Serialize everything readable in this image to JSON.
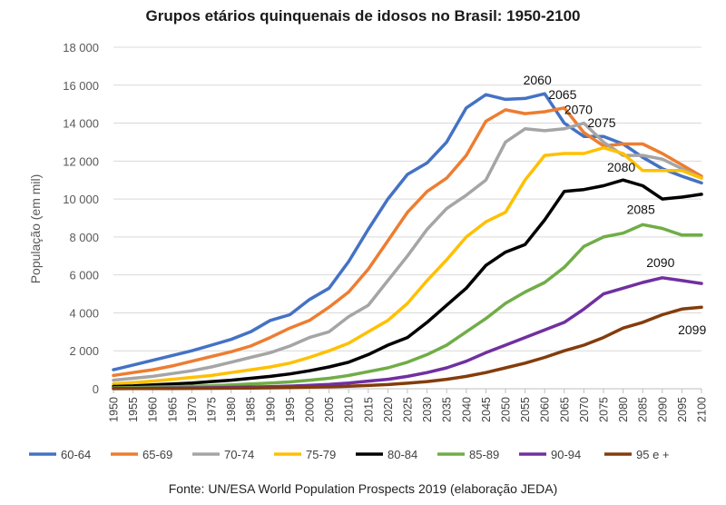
{
  "chart_data": {
    "type": "line",
    "title": "Grupos etários quinquenais de idosos no Brasil: 1950-2100",
    "xlabel": "",
    "ylabel": "População (em mil)",
    "xlim": [
      1950,
      2100
    ],
    "ylim": [
      0,
      18000
    ],
    "yticks": [
      0,
      2000,
      4000,
      6000,
      8000,
      10000,
      12000,
      14000,
      16000,
      18000
    ],
    "ytick_labels": [
      "0",
      "2 000",
      "4 000",
      "6 000",
      "8 000",
      "10 000",
      "12 000",
      "14 000",
      "16 000",
      "18 000"
    ],
    "xticks": [
      1950,
      1955,
      1960,
      1965,
      1970,
      1975,
      1980,
      1985,
      1990,
      1995,
      2000,
      2005,
      2010,
      2015,
      2020,
      2025,
      2030,
      2035,
      2040,
      2045,
      2050,
      2055,
      2060,
      2065,
      2070,
      2075,
      2080,
      2085,
      2090,
      2095,
      2100
    ],
    "grid": "horizontal",
    "legend": "bottom",
    "series": [
      {
        "name": "60-64",
        "color": "#4472C4",
        "x": [
          1950,
          1955,
          1960,
          1965,
          1970,
          1975,
          1980,
          1985,
          1990,
          1995,
          2000,
          2005,
          2010,
          2015,
          2020,
          2025,
          2030,
          2035,
          2040,
          2045,
          2050,
          2055,
          2060,
          2065,
          2070,
          2075,
          2080,
          2085,
          2090,
          2095,
          2100
        ],
        "y": [
          1000,
          1250,
          1500,
          1750,
          2000,
          2300,
          2600,
          3000,
          3600,
          3900,
          4700,
          5300,
          6700,
          8400,
          10000,
          11300,
          11900,
          13000,
          14800,
          15500,
          15250,
          15300,
          15550,
          14000,
          13300,
          13300,
          12900,
          12200,
          11600,
          11200,
          10850
        ]
      },
      {
        "name": "65-69",
        "color": "#ED7D31",
        "x": [
          1950,
          1955,
          1960,
          1965,
          1970,
          1975,
          1980,
          1985,
          1990,
          1995,
          2000,
          2005,
          2010,
          2015,
          2020,
          2025,
          2030,
          2035,
          2040,
          2045,
          2050,
          2055,
          2060,
          2065,
          2070,
          2075,
          2080,
          2085,
          2090,
          2095,
          2100
        ],
        "y": [
          700,
          850,
          1000,
          1200,
          1450,
          1700,
          1950,
          2250,
          2700,
          3200,
          3600,
          4300,
          5100,
          6300,
          7800,
          9300,
          10400,
          11100,
          12300,
          14100,
          14700,
          14500,
          14600,
          14800,
          13500,
          12800,
          12900,
          12900,
          12400,
          11800,
          11200
        ]
      },
      {
        "name": "70-74",
        "color": "#A5A5A5",
        "x": [
          1950,
          1955,
          1960,
          1965,
          1970,
          1975,
          1980,
          1985,
          1990,
          1995,
          2000,
          2005,
          2010,
          2015,
          2020,
          2025,
          2030,
          2035,
          2040,
          2045,
          2050,
          2055,
          2060,
          2065,
          2070,
          2075,
          2080,
          2085,
          2090,
          2095,
          2100
        ],
        "y": [
          450,
          550,
          650,
          800,
          950,
          1150,
          1400,
          1650,
          1900,
          2250,
          2700,
          3000,
          3800,
          4400,
          5700,
          7000,
          8400,
          9500,
          10200,
          11000,
          13000,
          13700,
          13600,
          13700,
          14000,
          13000,
          12300,
          12300,
          12100,
          11600,
          11100
        ]
      },
      {
        "name": "75-79",
        "color": "#FFC000",
        "x": [
          1950,
          1955,
          1960,
          1965,
          1970,
          1975,
          1980,
          1985,
          1990,
          1995,
          2000,
          2005,
          2010,
          2015,
          2020,
          2025,
          2030,
          2035,
          2040,
          2045,
          2050,
          2055,
          2060,
          2065,
          2070,
          2075,
          2080,
          2085,
          2090,
          2095,
          2100
        ],
        "y": [
          250,
          320,
          400,
          500,
          600,
          700,
          850,
          1000,
          1150,
          1350,
          1650,
          2000,
          2400,
          3000,
          3600,
          4500,
          5700,
          6800,
          8000,
          8800,
          9300,
          11000,
          12300,
          12400,
          12400,
          12700,
          12400,
          11500,
          11500,
          11500,
          11100
        ]
      },
      {
        "name": "80-84",
        "color": "#000000",
        "x": [
          1950,
          1955,
          1960,
          1965,
          1970,
          1975,
          1980,
          1985,
          1990,
          1995,
          2000,
          2005,
          2010,
          2015,
          2020,
          2025,
          2030,
          2035,
          2040,
          2045,
          2050,
          2055,
          2060,
          2065,
          2070,
          2075,
          2080,
          2085,
          2090,
          2095,
          2100
        ],
        "y": [
          120,
          150,
          200,
          250,
          300,
          380,
          450,
          550,
          650,
          780,
          950,
          1150,
          1400,
          1800,
          2300,
          2700,
          3500,
          4400,
          5300,
          6500,
          7200,
          7600,
          8900,
          10400,
          10500,
          10700,
          11000,
          10700,
          10000,
          10100,
          10250
        ]
      },
      {
        "name": "85-89",
        "color": "#70AD47",
        "x": [
          1950,
          1955,
          1960,
          1965,
          1970,
          1975,
          1980,
          1985,
          1990,
          1995,
          2000,
          2005,
          2010,
          2015,
          2020,
          2025,
          2030,
          2035,
          2040,
          2045,
          2050,
          2055,
          2060,
          2065,
          2070,
          2075,
          2080,
          2085,
          2090,
          2095,
          2100
        ],
        "y": [
          50,
          60,
          80,
          100,
          130,
          160,
          200,
          250,
          300,
          360,
          450,
          550,
          700,
          900,
          1100,
          1400,
          1800,
          2300,
          3000,
          3700,
          4500,
          5100,
          5600,
          6400,
          7500,
          8000,
          8200,
          8650,
          8450,
          8100,
          8100
        ]
      },
      {
        "name": "90-94",
        "color": "#7030A0",
        "x": [
          1950,
          1955,
          1960,
          1965,
          1970,
          1975,
          1980,
          1985,
          1990,
          1995,
          2000,
          2005,
          2010,
          2015,
          2020,
          2025,
          2030,
          2035,
          2040,
          2045,
          2050,
          2055,
          2060,
          2065,
          2070,
          2075,
          2080,
          2085,
          2090,
          2095,
          2100
        ],
        "y": [
          15,
          20,
          25,
          35,
          45,
          55,
          70,
          90,
          110,
          140,
          180,
          230,
          300,
          400,
          500,
          650,
          850,
          1100,
          1450,
          1900,
          2300,
          2700,
          3100,
          3500,
          4200,
          5000,
          5300,
          5600,
          5850,
          5700,
          5550
        ]
      },
      {
        "name": "95 e +",
        "color": "#843C0C",
        "x": [
          1950,
          1955,
          1960,
          1965,
          1970,
          1975,
          1980,
          1985,
          1990,
          1995,
          2000,
          2005,
          2010,
          2015,
          2020,
          2025,
          2030,
          2035,
          2040,
          2045,
          2050,
          2055,
          2060,
          2065,
          2070,
          2075,
          2080,
          2085,
          2090,
          2095,
          2100
        ],
        "y": [
          5,
          8,
          10,
          15,
          20,
          25,
          30,
          40,
          50,
          60,
          80,
          100,
          130,
          170,
          220,
          290,
          380,
          500,
          650,
          850,
          1100,
          1350,
          1650,
          2000,
          2300,
          2700,
          3200,
          3500,
          3900,
          4200,
          4300
        ]
      }
    ],
    "annotations": [
      {
        "text": "2060",
        "x": 2060,
        "y": 15550
      },
      {
        "text": "2065",
        "x": 2065,
        "y": 14800
      },
      {
        "text": "2070",
        "x": 2070,
        "y": 14000
      },
      {
        "text": "2075",
        "x": 2075,
        "y": 13300
      },
      {
        "text": "2080",
        "x": 2080,
        "y": 11000
      },
      {
        "text": "2085",
        "x": 2085,
        "y": 8650
      },
      {
        "text": "2090",
        "x": 2090,
        "y": 5850
      },
      {
        "text": "2099",
        "x": 2099,
        "y": 4300
      }
    ]
  },
  "source_note": "Fonte: UN/ESA World Population Prospects 2019 (elaboração JEDA)"
}
